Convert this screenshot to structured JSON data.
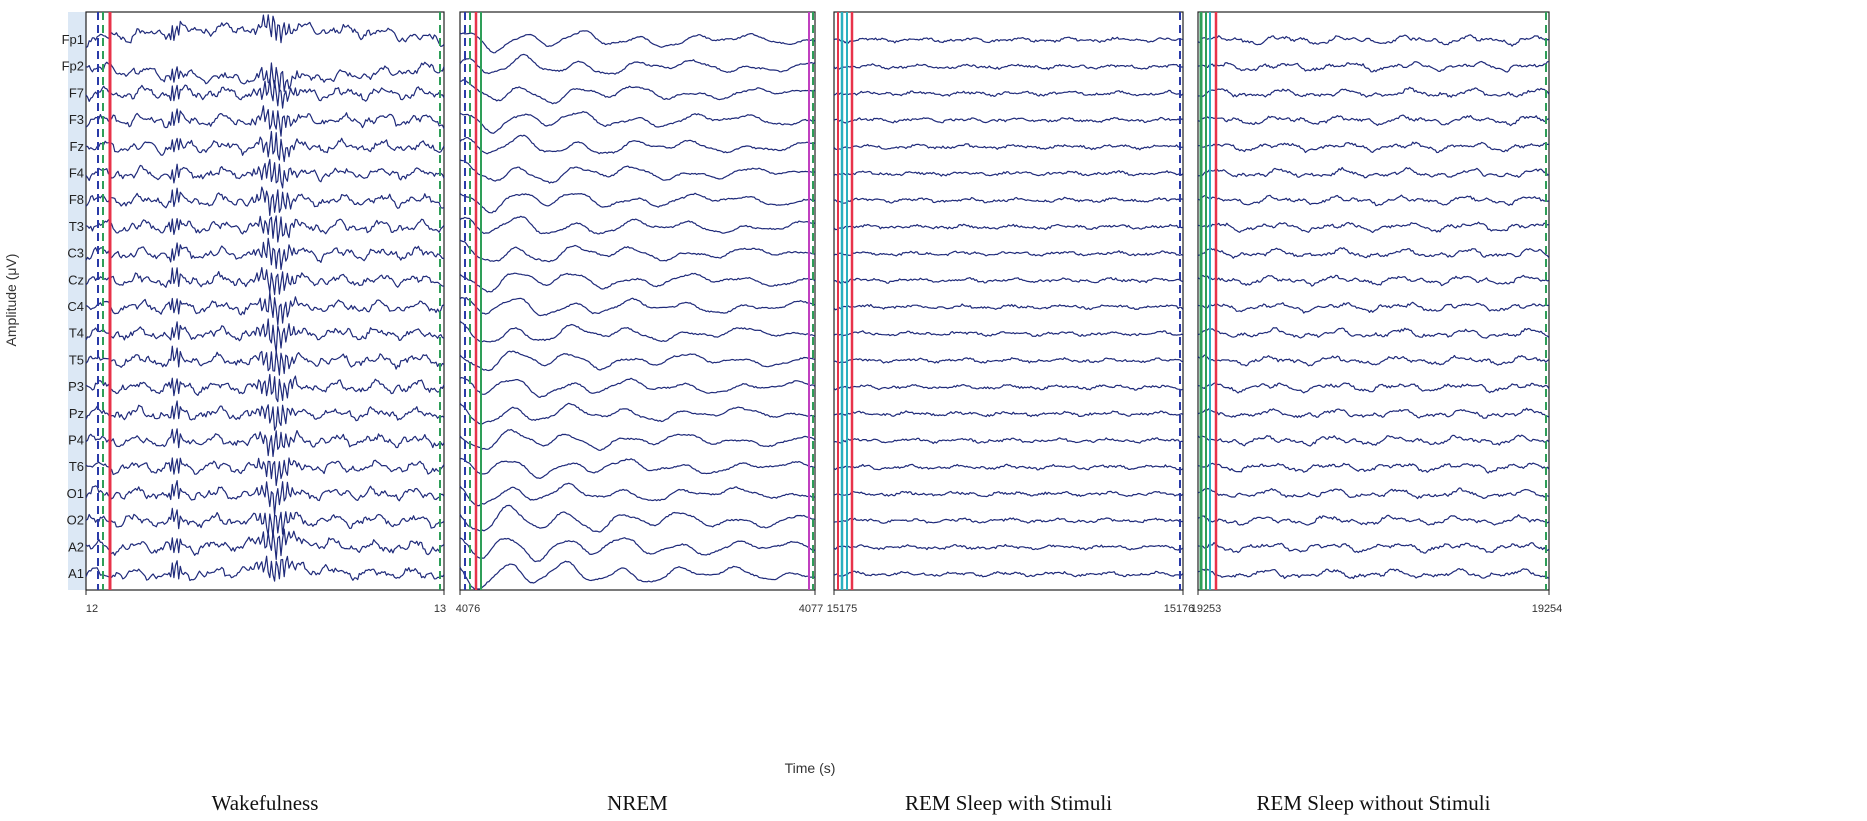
{
  "chart_data": {
    "type": "line",
    "ylabel": "Amplitude (μV)",
    "xlabel": "Time (s)",
    "channels": [
      "Fp1",
      "Fp2",
      "F7",
      "F3",
      "Fz",
      "F4",
      "F8",
      "T3",
      "C3",
      "Cz",
      "C4",
      "T4",
      "T5",
      "P3",
      "Pz",
      "P4",
      "T6",
      "O1",
      "O2",
      "A2",
      "A1"
    ],
    "colors": {
      "trace": "#1f2a7a",
      "frame": "#222222",
      "channel_strip": "#dce8f5",
      "marker_red": "#e8334a",
      "marker_green": "#2e9e58",
      "marker_cyan": "#2ab0c0",
      "marker_blue_dashed": "#2a3aa8",
      "marker_magenta": "#c040c0"
    },
    "panels": [
      {
        "caption": "Wakefulness",
        "x_start": "12",
        "x_end": "13",
        "xlim": [
          12,
          13
        ],
        "pattern": "wake"
      },
      {
        "caption": "NREM",
        "x_start": "4076",
        "x_end": "4077",
        "xlim": [
          4076,
          4077
        ],
        "pattern": "nrem"
      },
      {
        "caption": "REM Sleep with Stimuli",
        "x_start": "15175",
        "x_end": "15176",
        "xlim": [
          15175,
          15176
        ],
        "pattern": "rem_stim"
      },
      {
        "caption": "REM Sleep without Stimuli",
        "x_start": "19253",
        "x_end": "19254",
        "xlim": [
          19253,
          19254
        ],
        "pattern": "rem_nostim"
      }
    ]
  }
}
